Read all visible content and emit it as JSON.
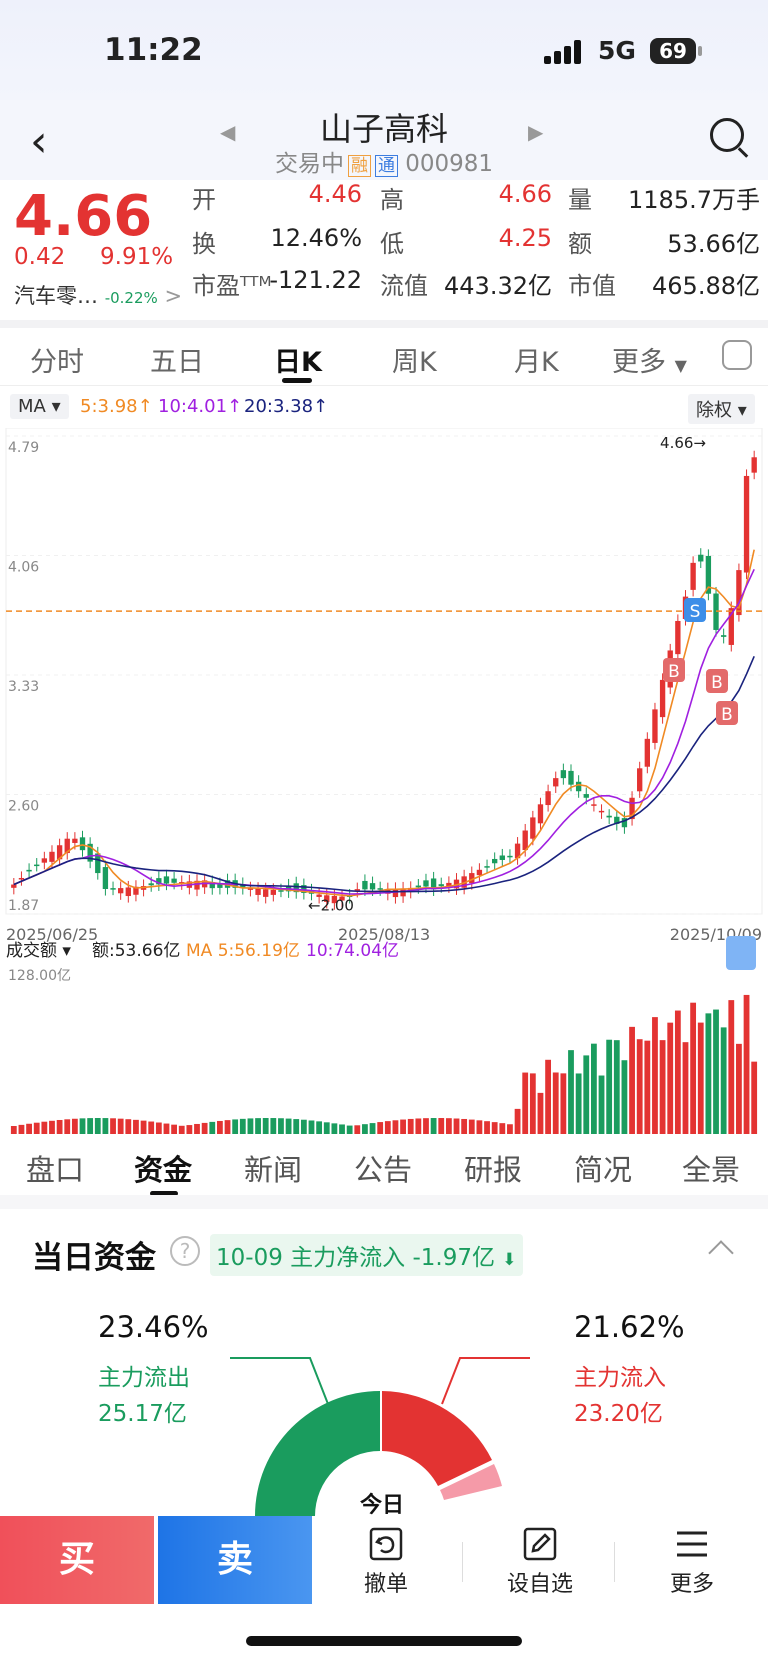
{
  "status": {
    "time": "11:22",
    "network": "5G",
    "battery": "69"
  },
  "nav": {
    "name": "山子高科",
    "state": "交易中",
    "tag1": "融",
    "tag2": "通",
    "code": "000981"
  },
  "quote": {
    "price": "4.66",
    "change": "0.42",
    "change_pct": "9.91%",
    "sector": "汽车零…",
    "sector_pct": "-0.22%",
    "rows": [
      {
        "l1": "开",
        "v1": "4.46",
        "l2": "高",
        "v2": "4.66",
        "l3": "量",
        "v3": "1185.7万手"
      },
      {
        "l1": "换",
        "v1": "12.46%",
        "l2": "低",
        "v2": "4.25",
        "l3": "额",
        "v3": "53.66亿"
      },
      {
        "l1": "市盈ᵀᵀᴹ",
        "v1": "-121.22",
        "l2": "流值",
        "v2": "443.32亿",
        "l3": "市值",
        "v3": "465.88亿"
      }
    ]
  },
  "tabs": [
    "分时",
    "五日",
    "日K",
    "周K",
    "月K",
    "更多"
  ],
  "ma": {
    "btn": "MA",
    "ma5": "5:3.98",
    "ma10": "10:4.01",
    "ma20": "20:3.38",
    "adjust": "除权"
  },
  "chart_data": {
    "type": "candlestick",
    "x_start": "2025/06/25",
    "x_mid": "2025/08/13",
    "x_end": "2025/10/09",
    "y_ticks": [
      "4.79",
      "4.06",
      "3.33",
      "2.60",
      "1.87"
    ],
    "ylim": [
      1.87,
      4.79
    ],
    "last_price_label": "4.66",
    "low_label": "2.00",
    "dashed_line": 3.72,
    "markers": [
      "S",
      "B",
      "B",
      "B"
    ],
    "colors": {
      "up": "#e33332",
      "down": "#1a9c5e",
      "ma5": "#f08a24",
      "ma10": "#a020e0",
      "ma20": "#1a237e"
    }
  },
  "volume": {
    "label": "成交额",
    "amount": "额:53.66亿",
    "ma5": "MA 5:56.19亿",
    "ma10": "10:74.04亿",
    "max_tick": "128.00亿"
  },
  "tabs2": [
    "盘口",
    "资金",
    "新闻",
    "公告",
    "研报",
    "简况",
    "全景"
  ],
  "fund": {
    "title": "当日资金",
    "help": "?",
    "net": "10-09 主力净流入 -1.97亿",
    "out_pct": "23.46%",
    "out_label": "主力流出",
    "out_amt": "25.17亿",
    "in_pct": "21.62%",
    "in_label": "主力流入",
    "in_amt": "23.20亿",
    "center": "今日"
  },
  "bottom": {
    "buy": "买",
    "sell": "卖",
    "cancel": "撤单",
    "watch": "设自选",
    "more": "更多"
  }
}
